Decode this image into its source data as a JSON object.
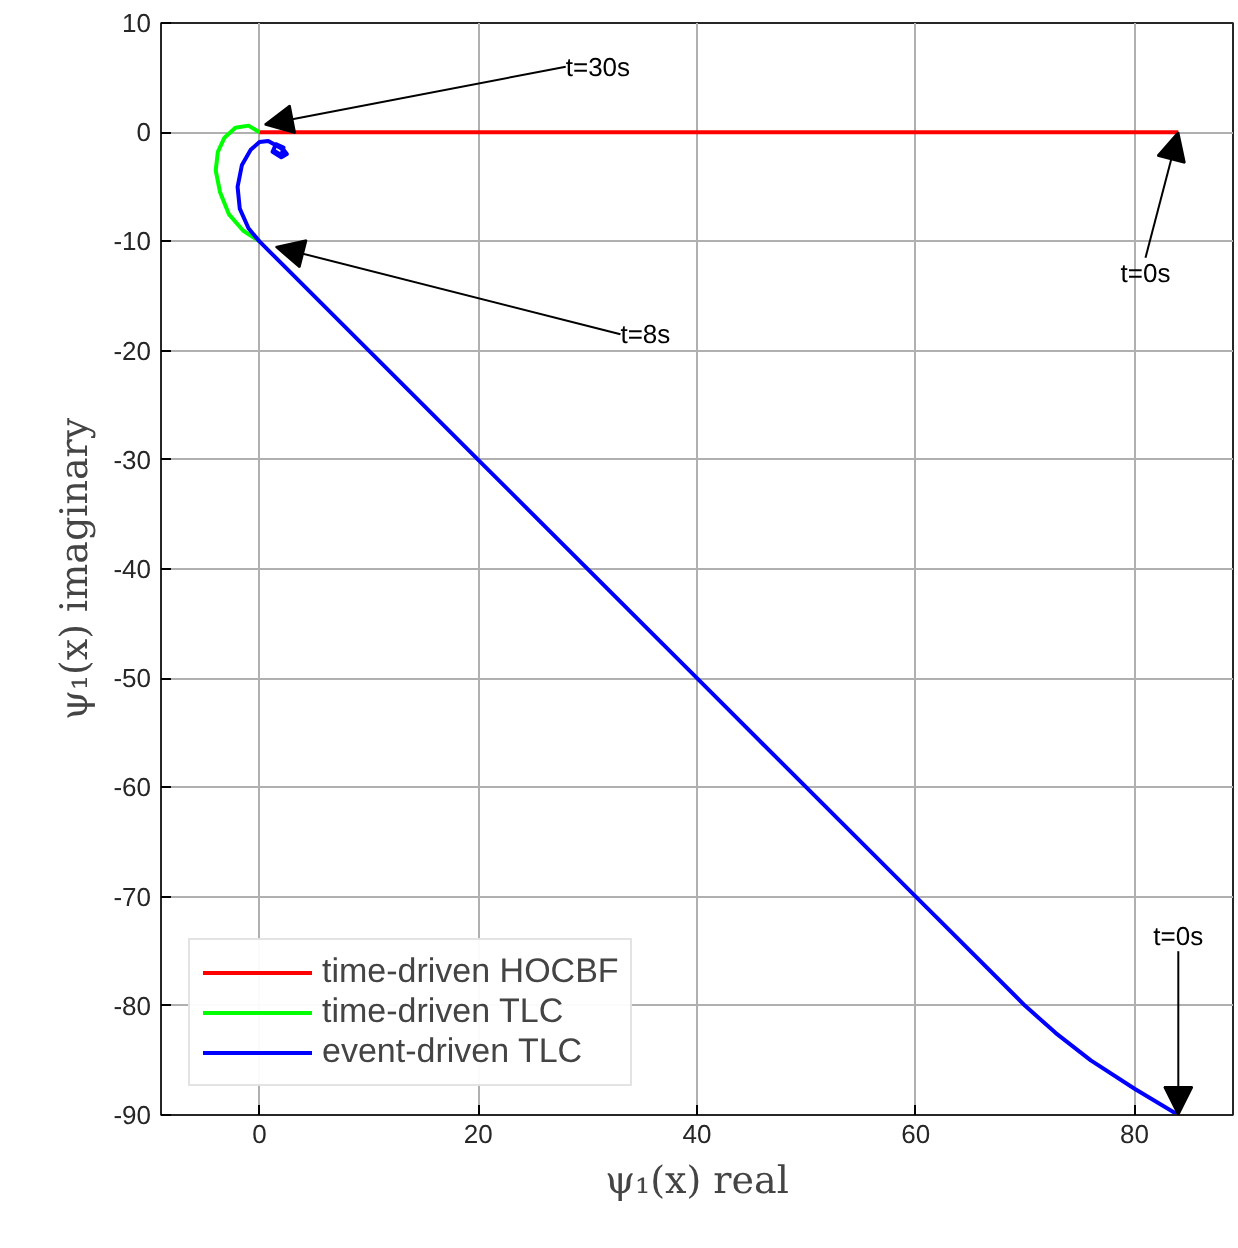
{
  "chart_data": {
    "type": "line",
    "xlabel": "ψ₁(x) real",
    "ylabel": "ψ₁(x) imaginary",
    "xlim": [
      -9,
      89
    ],
    "ylim": [
      -90,
      10
    ],
    "xticks": [
      0,
      20,
      40,
      60,
      80
    ],
    "yticks": [
      10,
      0,
      -10,
      -20,
      -30,
      -40,
      -50,
      -60,
      -70,
      -80,
      -90
    ],
    "grid": true,
    "legend": "bottom left",
    "line_style": "solid",
    "marker": "none",
    "series": [
      {
        "name": "time-driven HOCBF",
        "color": "#ff0000",
        "x": [
          84,
          60,
          40,
          20,
          0
        ],
        "values": [
          0,
          0,
          0,
          0,
          0
        ]
      },
      {
        "name": "time-driven TLC",
        "color": "#00ff00",
        "x": [
          0,
          -1.5,
          -2.8,
          -3.6,
          -4,
          -3.8,
          -3.2,
          -2.2,
          -1,
          0
        ],
        "values": [
          -10,
          -9,
          -7.5,
          -5.5,
          -3.5,
          -1.8,
          -0.5,
          0.4,
          0.6,
          0
        ]
      },
      {
        "name": "event-driven TLC",
        "color": "#0000ff",
        "x": [
          84,
          80,
          76,
          72.8,
          70,
          60,
          40,
          20,
          10,
          3,
          1,
          0,
          -1,
          -1.8,
          -2,
          -1.6,
          -0.8,
          0,
          0.8,
          1.5,
          2.2,
          2.5,
          2,
          1.2,
          1.5,
          2.2,
          2,
          1.2
        ],
        "values": [
          -90,
          -87.6,
          -85,
          -82.5,
          -80,
          -70,
          -50,
          -30,
          -20,
          -13,
          -11,
          -10,
          -8.8,
          -7,
          -5,
          -3,
          -1.6,
          -0.9,
          -0.8,
          -1.2,
          -1.6,
          -2,
          -2.3,
          -1.8,
          -1.1,
          -1.4,
          -2.1,
          -1.6
        ]
      }
    ],
    "annotations": [
      {
        "text": "t=30s",
        "x": 0.5,
        "y": 0.7
      },
      {
        "text": "t=8s",
        "x": 1.5,
        "y": -10.5
      },
      {
        "text": "t=0s",
        "x": 84,
        "y": 0
      },
      {
        "text": "t=0s",
        "x": 84,
        "y": -90
      }
    ]
  }
}
